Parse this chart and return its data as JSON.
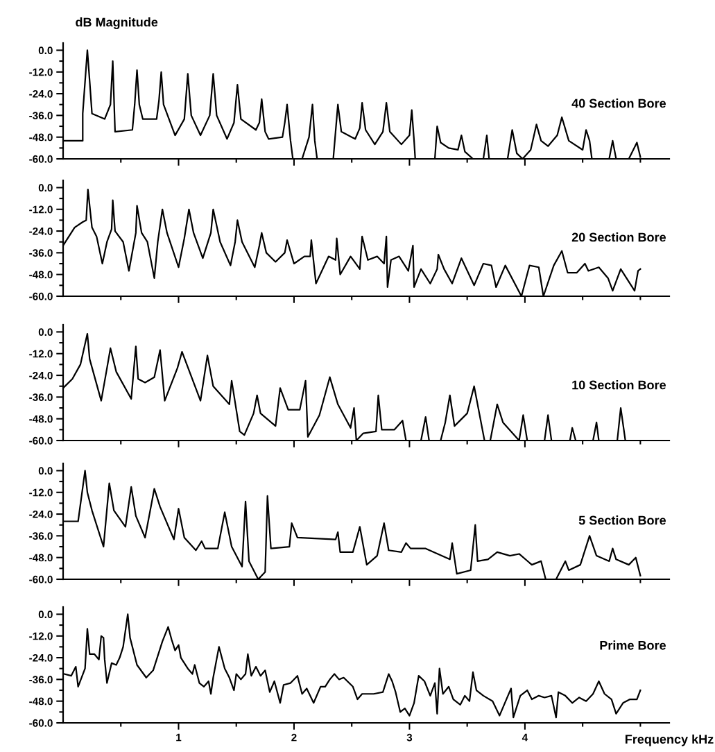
{
  "chart_data": [
    {
      "type": "line",
      "ylabel": "dB Magnitude",
      "tick_labels": "y",
      "grid": false,
      "legend": false,
      "marker": "none",
      "line_style": "solid",
      "xlim": [
        0,
        5.25
      ],
      "ylim": [
        -60,
        4
      ],
      "xticks": [
        {
          "value": 0.5,
          "label": null
        },
        1,
        {
          "value": 1.5,
          "label": null
        },
        2,
        {
          "value": 2.5,
          "label": null
        },
        3,
        {
          "value": 3.5,
          "label": null
        },
        4,
        {
          "value": 4.5,
          "label": null
        },
        {
          "value": 5,
          "label": null
        }
      ],
      "yticks": [
        {
          "value": 0,
          "label": "0.0"
        },
        {
          "value": -6,
          "label": null
        },
        {
          "value": -12,
          "label": "-12.0"
        },
        {
          "value": -18,
          "label": null
        },
        {
          "value": -24,
          "label": "-24.0"
        },
        {
          "value": -30,
          "label": null
        },
        {
          "value": -36,
          "label": "-36.0"
        },
        {
          "value": -42,
          "label": null
        },
        {
          "value": -48,
          "label": "-48.0"
        },
        {
          "value": -54,
          "label": null
        },
        {
          "value": -60,
          "label": "-60.0"
        }
      ],
      "series": [
        {
          "name": "40 Section Bore",
          "color": "#000000",
          "x": [
            0,
            0.17,
            0.17,
            0.21,
            0.23,
            0.25,
            0.36,
            0.41,
            0.43,
            0.45,
            0.6,
            0.62,
            0.64,
            0.66,
            0.69,
            0.81,
            0.83,
            0.85,
            0.87,
            0.97,
            1.05,
            1.08,
            1.11,
            1.19,
            1.27,
            1.3,
            1.33,
            1.42,
            1.48,
            1.51,
            1.54,
            1.67,
            1.7,
            1.72,
            1.75,
            1.78,
            1.9,
            1.92,
            1.94,
            1.97,
            1.99,
            2.07,
            2.13,
            2.16,
            2.18,
            2.2,
            2.34,
            2.36,
            2.38,
            2.41,
            2.53,
            2.57,
            2.59,
            2.62,
            2.7,
            2.77,
            2.8,
            2.83,
            2.93,
            3.0,
            3.02,
            3.04,
            3.05,
            3.22,
            3.24,
            3.27,
            3.34,
            3.42,
            3.45,
            3.48,
            3.55,
            3.64,
            3.67,
            3.69,
            3.85,
            3.89,
            3.93,
            3.98,
            4.05,
            4.1,
            4.14,
            4.2,
            4.28,
            4.32,
            4.38,
            4.5,
            4.53,
            4.56,
            4.58,
            4.73,
            4.76,
            4.79,
            4.9,
            4.97,
            5.0
          ],
          "values": [
            -50,
            -50,
            -35,
            0,
            -17,
            -35,
            -38,
            -30,
            -6,
            -45,
            -44,
            -30,
            -11,
            -30,
            -38,
            -38,
            -28,
            -12,
            -30,
            -47,
            -38,
            -13,
            -36,
            -47,
            -36,
            -13,
            -36,
            -49,
            -40,
            -19,
            -38,
            -44,
            -40,
            -27,
            -45,
            -49,
            -48,
            -40,
            -30,
            -50,
            -60,
            -60,
            -48,
            -30,
            -50,
            -60,
            -60,
            -45,
            -30,
            -45,
            -49,
            -43,
            -29,
            -44,
            -52,
            -45,
            -29,
            -45,
            -52,
            -47,
            -33,
            -50,
            -60,
            -60,
            -42,
            -51,
            -54,
            -55,
            -47,
            -56,
            -60,
            -60,
            -47,
            -60,
            -60,
            -44,
            -57,
            -60,
            -55,
            -41,
            -50,
            -53,
            -47,
            -37,
            -50,
            -55,
            -44,
            -50,
            -60,
            -60,
            -50,
            -60,
            -60,
            -51,
            -59
          ]
        }
      ]
    },
    {
      "type": "line",
      "tick_labels": "y",
      "grid": false,
      "legend": false,
      "marker": "none",
      "line_style": "solid",
      "xlim": [
        0,
        5.25
      ],
      "ylim": [
        -60,
        4
      ],
      "xticks": [
        {
          "value": 0.5,
          "label": null
        },
        1,
        {
          "value": 1.5,
          "label": null
        },
        2,
        {
          "value": 2.5,
          "label": null
        },
        3,
        {
          "value": 3.5,
          "label": null
        },
        4,
        {
          "value": 4.5,
          "label": null
        },
        {
          "value": 5,
          "label": null
        }
      ],
      "yticks": [
        {
          "value": 0,
          "label": "0.0"
        },
        {
          "value": -6,
          "label": null
        },
        {
          "value": -12,
          "label": "-12.0"
        },
        {
          "value": -18,
          "label": null
        },
        {
          "value": -24,
          "label": "-24.0"
        },
        {
          "value": -30,
          "label": null
        },
        {
          "value": -36,
          "label": "-36.0"
        },
        {
          "value": -42,
          "label": null
        },
        {
          "value": -48,
          "label": "-48.0"
        },
        {
          "value": -54,
          "label": null
        },
        {
          "value": -60,
          "label": "-60.0"
        }
      ],
      "series": [
        {
          "name": "20 Section Bore",
          "color": "#000000",
          "x": [
            0,
            0.1,
            0.17,
            0.2,
            0.215,
            0.25,
            0.29,
            0.34,
            0.38,
            0.42,
            0.43,
            0.45,
            0.52,
            0.57,
            0.63,
            0.64,
            0.68,
            0.73,
            0.79,
            0.82,
            0.86,
            0.9,
            1.0,
            1.05,
            1.09,
            1.13,
            1.21,
            1.28,
            1.3,
            1.36,
            1.45,
            1.49,
            1.51,
            1.55,
            1.66,
            1.7,
            1.72,
            1.76,
            1.84,
            1.92,
            1.94,
            2.0,
            2.09,
            2.14,
            2.15,
            2.19,
            2.3,
            2.36,
            2.37,
            2.4,
            2.49,
            2.57,
            2.59,
            2.64,
            2.72,
            2.78,
            2.8,
            2.81,
            2.84,
            2.91,
            2.99,
            3.03,
            3.04,
            3.1,
            3.18,
            3.24,
            3.25,
            3.3,
            3.37,
            3.45,
            3.56,
            3.64,
            3.71,
            3.75,
            3.83,
            3.97,
            4.04,
            4.12,
            4.16,
            4.25,
            4.32,
            4.37,
            4.45,
            4.52,
            4.55,
            4.64,
            4.72,
            4.76,
            4.83,
            4.95,
            4.98,
            5.0
          ],
          "values": [
            -32,
            -22,
            -19,
            -18,
            -1,
            -22,
            -27,
            -42,
            -30,
            -23,
            -7,
            -24,
            -30,
            -46,
            -25,
            -10,
            -25,
            -30,
            -50,
            -30,
            -12,
            -25,
            -44,
            -28,
            -12,
            -25,
            -39,
            -25,
            -12,
            -30,
            -43,
            -30,
            -18,
            -30,
            -44,
            -32,
            -25,
            -36,
            -41,
            -36,
            -29,
            -42,
            -38,
            -38,
            -29,
            -53,
            -38,
            -40,
            -28,
            -48,
            -38,
            -45,
            -27,
            -40,
            -38,
            -42,
            -27,
            -55,
            -40,
            -38,
            -46,
            -32,
            -55,
            -45,
            -53,
            -45,
            -37,
            -45,
            -53,
            -39,
            -54,
            -42,
            -43,
            -55,
            -43,
            -60,
            -43,
            -44,
            -60,
            -43,
            -35,
            -47,
            -47,
            -42,
            -46,
            -44,
            -50,
            -57,
            -45,
            -57,
            -46,
            -45
          ]
        }
      ]
    },
    {
      "type": "line",
      "tick_labels": "y",
      "grid": false,
      "legend": false,
      "marker": "none",
      "line_style": "solid",
      "xlim": [
        0,
        5.25
      ],
      "ylim": [
        -60,
        4
      ],
      "xticks": [
        {
          "value": 0.5,
          "label": null
        },
        1,
        {
          "value": 1.5,
          "label": null
        },
        2,
        {
          "value": 2.5,
          "label": null
        },
        3,
        {
          "value": 3.5,
          "label": null
        },
        4,
        {
          "value": 4.5,
          "label": null
        },
        {
          "value": 5,
          "label": null
        }
      ],
      "yticks": [
        {
          "value": 0,
          "label": "0.0"
        },
        {
          "value": -6,
          "label": null
        },
        {
          "value": -12,
          "label": "-12.0"
        },
        {
          "value": -18,
          "label": null
        },
        {
          "value": -24,
          "label": "-24.0"
        },
        {
          "value": -30,
          "label": null
        },
        {
          "value": -36,
          "label": "-36.0"
        },
        {
          "value": -42,
          "label": null
        },
        {
          "value": -48,
          "label": "-48.0"
        },
        {
          "value": -54,
          "label": null
        },
        {
          "value": -60,
          "label": "-60.0"
        }
      ],
      "series": [
        {
          "name": "10 Section Bore",
          "color": "#000000",
          "x": [
            0,
            0.08,
            0.15,
            0.21,
            0.23,
            0.33,
            0.38,
            0.41,
            0.46,
            0.59,
            0.63,
            0.65,
            0.71,
            0.79,
            0.84,
            0.88,
            0.99,
            1.03,
            1.19,
            1.25,
            1.3,
            1.44,
            1.46,
            1.53,
            1.57,
            1.65,
            1.68,
            1.71,
            1.84,
            1.88,
            1.95,
            2.05,
            2.1,
            2.12,
            2.22,
            2.31,
            2.38,
            2.49,
            2.52,
            2.54,
            2.6,
            2.71,
            2.73,
            2.76,
            2.87,
            2.94,
            2.97,
            3.1,
            3.14,
            3.17,
            3.27,
            3.31,
            3.35,
            3.39,
            3.5,
            3.56,
            3.65,
            3.7,
            3.76,
            3.81,
            3.95,
            3.985,
            4.02,
            4.17,
            4.2,
            4.23,
            4.39,
            4.41,
            4.44,
            4.59,
            4.62,
            4.64,
            4.8,
            4.83,
            4.87,
            5.0
          ],
          "values": [
            -31,
            -26,
            -18,
            -1,
            -15,
            -38,
            -20,
            -9,
            -22,
            -37,
            -8,
            -26,
            -28,
            -25,
            -10,
            -38,
            -20,
            -11,
            -38,
            -13,
            -30,
            -40,
            -27,
            -55,
            -57,
            -45,
            -35,
            -45,
            -52,
            -31,
            -43,
            -43,
            -27,
            -58,
            -46,
            -25,
            -40,
            -53,
            -42,
            -60,
            -56,
            -55,
            -35,
            -54,
            -54,
            -49,
            -60,
            -60,
            -47,
            -60,
            -60,
            -50,
            -35,
            -52,
            -45,
            -30,
            -60,
            -60,
            -40,
            -50,
            -60,
            -46,
            -60,
            -60,
            -46,
            -60,
            -60,
            -53,
            -60,
            -60,
            -50,
            -60,
            -60,
            -42,
            -60,
            -60
          ]
        }
      ]
    },
    {
      "type": "line",
      "tick_labels": "y",
      "grid": false,
      "legend": false,
      "marker": "none",
      "line_style": "solid",
      "xlim": [
        0,
        5.25
      ],
      "ylim": [
        -60,
        4
      ],
      "xticks": [
        {
          "value": 0.5,
          "label": null
        },
        1,
        {
          "value": 1.5,
          "label": null
        },
        2,
        {
          "value": 2.5,
          "label": null
        },
        3,
        {
          "value": 3.5,
          "label": null
        },
        4,
        {
          "value": 4.5,
          "label": null
        },
        {
          "value": 5,
          "label": null
        }
      ],
      "yticks": [
        {
          "value": 0,
          "label": "0.0"
        },
        {
          "value": -6,
          "label": null
        },
        {
          "value": -12,
          "label": "-12.0"
        },
        {
          "value": -18,
          "label": null
        },
        {
          "value": -24,
          "label": "-24.0"
        },
        {
          "value": -30,
          "label": null
        },
        {
          "value": -36,
          "label": "-36.0"
        },
        {
          "value": -42,
          "label": null
        },
        {
          "value": -48,
          "label": "-48.0"
        },
        {
          "value": -54,
          "label": null
        },
        {
          "value": -60,
          "label": "-60.0"
        }
      ],
      "series": [
        {
          "name": "5 Section Bore",
          "color": "#000000",
          "x": [
            0,
            0.13,
            0.19,
            0.21,
            0.25,
            0.35,
            0.4,
            0.44,
            0.54,
            0.59,
            0.63,
            0.71,
            0.79,
            0.84,
            0.96,
            1.0,
            1.05,
            1.15,
            1.2,
            1.23,
            1.34,
            1.4,
            1.46,
            1.55,
            1.58,
            1.61,
            1.69,
            1.75,
            1.77,
            1.8,
            1.96,
            1.98,
            2.03,
            2.36,
            2.38,
            2.4,
            2.51,
            2.57,
            2.63,
            2.72,
            2.78,
            2.82,
            2.93,
            2.97,
            3.01,
            3.14,
            3.35,
            3.37,
            3.41,
            3.53,
            3.57,
            3.59,
            3.68,
            3.76,
            3.87,
            3.95,
            4.06,
            4.14,
            4.18,
            4.27,
            4.35,
            4.38,
            4.48,
            4.56,
            4.62,
            4.73,
            4.76,
            4.79,
            4.9,
            4.96,
            5.0
          ],
          "values": [
            -28,
            -28,
            0,
            -12,
            -22,
            -42,
            -7,
            -22,
            -31,
            -9,
            -25,
            -37,
            -10,
            -20,
            -38,
            -21,
            -37,
            -44,
            -39,
            -43,
            -43,
            -23,
            -42,
            -53,
            -17,
            -50,
            -60,
            -56,
            -14,
            -43,
            -42,
            -29,
            -37,
            -38,
            -34,
            -45,
            -45,
            -31,
            -52,
            -47,
            -29,
            -44,
            -45,
            -40,
            -43,
            -43,
            -49,
            -40,
            -57,
            -55,
            -30,
            -50,
            -49,
            -45,
            -47,
            -46,
            -52,
            -50,
            -60,
            -60,
            -50,
            -55,
            -52,
            -36,
            -47,
            -50,
            -43,
            -49,
            -52,
            -48,
            -58
          ]
        }
      ]
    },
    {
      "type": "line",
      "xlabel": "Frequency kHz",
      "grid": false,
      "legend": false,
      "marker": "none",
      "line_style": "solid",
      "xlim": [
        0,
        5.25
      ],
      "ylim": [
        -60,
        4
      ],
      "xticks": [
        {
          "value": 0.5,
          "label": null
        },
        1,
        {
          "value": 1.5,
          "label": null
        },
        2,
        {
          "value": 2.5,
          "label": null
        },
        3,
        {
          "value": 3.5,
          "label": null
        },
        4,
        {
          "value": 4.5,
          "label": null
        },
        {
          "value": 5,
          "label": null
        }
      ],
      "yticks": [
        {
          "value": 0,
          "label": "0.0"
        },
        {
          "value": -6,
          "label": null
        },
        {
          "value": -12,
          "label": "-12.0"
        },
        {
          "value": -18,
          "label": null
        },
        {
          "value": -24,
          "label": "-24.0"
        },
        {
          "value": -30,
          "label": null
        },
        {
          "value": -36,
          "label": "-36.0"
        },
        {
          "value": -42,
          "label": null
        },
        {
          "value": -48,
          "label": "-48.0"
        },
        {
          "value": -54,
          "label": null
        },
        {
          "value": -60,
          "label": "-60.0"
        }
      ],
      "series": [
        {
          "name": "Prime Bore",
          "color": "#000000",
          "x": [
            0.01,
            0.07,
            0.11,
            0.13,
            0.19,
            0.21,
            0.23,
            0.27,
            0.31,
            0.33,
            0.35,
            0.36,
            0.38,
            0.42,
            0.46,
            0.49,
            0.52,
            0.56,
            0.58,
            0.64,
            0.72,
            0.78,
            0.86,
            0.91,
            0.94,
            0.97,
            1.0,
            1.02,
            1.08,
            1.12,
            1.14,
            1.18,
            1.22,
            1.26,
            1.28,
            1.3,
            1.35,
            1.4,
            1.44,
            1.48,
            1.5,
            1.54,
            1.58,
            1.6,
            1.63,
            1.67,
            1.71,
            1.75,
            1.79,
            1.83,
            1.88,
            1.91,
            1.97,
            2.03,
            2.07,
            2.11,
            2.17,
            2.23,
            2.27,
            2.31,
            2.35,
            2.39,
            2.43,
            2.51,
            2.55,
            2.59,
            2.69,
            2.77,
            2.82,
            2.85,
            2.88,
            2.92,
            2.96,
            3.0,
            3.04,
            3.08,
            3.13,
            3.18,
            3.22,
            3.24,
            3.26,
            3.29,
            3.34,
            3.38,
            3.44,
            3.48,
            3.52,
            3.55,
            3.58,
            3.64,
            3.72,
            3.78,
            3.82,
            3.88,
            3.9,
            3.96,
            4.02,
            4.06,
            4.12,
            4.17,
            4.23,
            4.27,
            4.29,
            4.35,
            4.41,
            4.47,
            4.53,
            4.59,
            4.64,
            4.69,
            4.75,
            4.79,
            4.85,
            4.91,
            4.97,
            5.0
          ],
          "values": [
            -33,
            -34,
            -29,
            -40,
            -30,
            -8,
            -22,
            -22,
            -25,
            -12,
            -13,
            -25,
            -38,
            -27,
            -28,
            -24,
            -18,
            0,
            -13,
            -28,
            -35,
            -31,
            -15,
            -7,
            -14,
            -20,
            -17,
            -24,
            -30,
            -33,
            -28,
            -38,
            -40,
            -37,
            -44,
            -35,
            -18,
            -30,
            -35,
            -42,
            -33,
            -36,
            -33,
            -22,
            -34,
            -29,
            -34,
            -31,
            -43,
            -37,
            -49,
            -39,
            -38,
            -34,
            -44,
            -41,
            -49,
            -40,
            -40,
            -36,
            -33,
            -36,
            -35,
            -40,
            -47,
            -44,
            -44,
            -43,
            -33,
            -37,
            -43,
            -54,
            -52,
            -56,
            -49,
            -34,
            -37,
            -45,
            -38,
            -55,
            -30,
            -44,
            -40,
            -47,
            -50,
            -45,
            -48,
            -32,
            -42,
            -45,
            -48,
            -56,
            -50,
            -41,
            -57,
            -45,
            -42,
            -47,
            -45,
            -46,
            -45,
            -57,
            -43,
            -45,
            -49,
            -46,
            -48,
            -44,
            -37,
            -44,
            -47,
            -55,
            -49,
            -47,
            -47,
            -42
          ]
        }
      ]
    }
  ]
}
